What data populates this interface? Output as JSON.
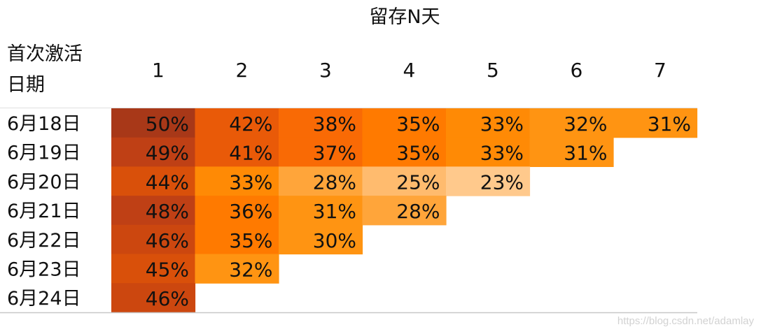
{
  "chart_data": {
    "type": "heatmap",
    "title": "留存N天",
    "row_header": [
      "首次激活",
      "日期"
    ],
    "columns": [
      "1",
      "2",
      "3",
      "4",
      "5",
      "6",
      "7"
    ],
    "rows": [
      {
        "label": "6月18日",
        "values": [
          "50%",
          "42%",
          "38%",
          "35%",
          "33%",
          "32%",
          "31%"
        ]
      },
      {
        "label": "6月19日",
        "values": [
          "49%",
          "41%",
          "37%",
          "35%",
          "33%",
          "31%"
        ]
      },
      {
        "label": "6月20日",
        "values": [
          "44%",
          "33%",
          "28%",
          "25%",
          "23%"
        ]
      },
      {
        "label": "6月21日",
        "values": [
          "48%",
          "36%",
          "31%",
          "28%"
        ]
      },
      {
        "label": "6月22日",
        "values": [
          "46%",
          "35%",
          "30%"
        ]
      },
      {
        "label": "6月23日",
        "values": [
          "45%",
          "32%"
        ]
      },
      {
        "label": "6月24日",
        "values": [
          "46%"
        ]
      }
    ],
    "color_scale": {
      "min": 23,
      "max": 50,
      "stops": [
        {
          "value": 23,
          "color": "#ffc98c"
        },
        {
          "value": 25,
          "color": "#ffbb6e"
        },
        {
          "value": 28,
          "color": "#ffa53a"
        },
        {
          "value": 31,
          "color": "#ff9412"
        },
        {
          "value": 33,
          "color": "#ff8a05"
        },
        {
          "value": 35,
          "color": "#ff7a00"
        },
        {
          "value": 38,
          "color": "#f96a05"
        },
        {
          "value": 41,
          "color": "#e95a08"
        },
        {
          "value": 44,
          "color": "#d9500a"
        },
        {
          "value": 46,
          "color": "#cc470f"
        },
        {
          "value": 48,
          "color": "#bf4015"
        },
        {
          "value": 50,
          "color": "#a83818"
        }
      ]
    }
  },
  "watermark": "https://blog.csdn.net/adamlay"
}
